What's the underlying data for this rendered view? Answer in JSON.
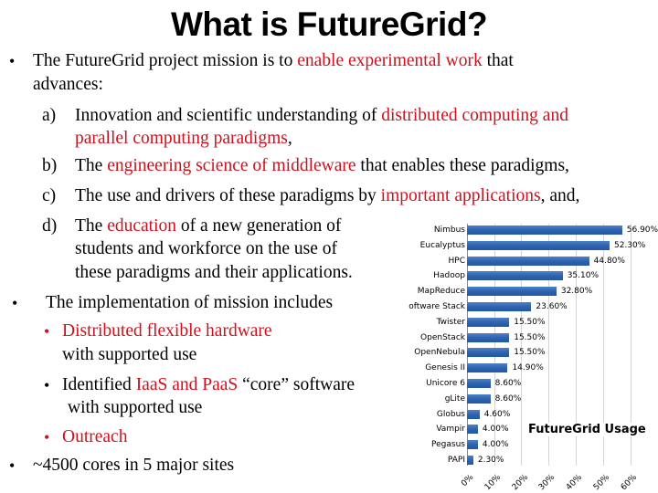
{
  "slide": {
    "title": "What is FutureGrid?",
    "bullets": {
      "b1": {
        "marker": "•",
        "pre": "The FutureGrid project mission is to ",
        "red": "enable experimental work",
        "post": " that",
        "line2": "advances:"
      },
      "a": {
        "marker": "a)",
        "pre": "Innovation and scientific understanding of ",
        "red1": "distributed computing and",
        "red2": "parallel computing paradigms",
        "post": ","
      },
      "b": {
        "marker": "b)",
        "pre": "The ",
        "red": "engineering science of middleware",
        "post": " that enables these paradigms,"
      },
      "c": {
        "marker": "c)",
        "pre": "The use and drivers of these paradigms by ",
        "red": "important applications",
        "post": ", and,"
      },
      "d": {
        "marker": "d)",
        "pre": "The ",
        "red": "education",
        "post": " of a new generation of",
        "line2": "students and workforce on the use of",
        "line3": "these paradigms and their applications."
      },
      "b2": {
        "marker": "•",
        "text": "The implementation of mission includes"
      },
      "sub1": {
        "marker": "•",
        "red": "Distributed flexible hardware",
        "line2": "with supported use"
      },
      "sub2": {
        "marker": "•",
        "pre": "Identified ",
        "red": "IaaS and PaaS",
        "post": " “core” software",
        "line2": "with supported use"
      },
      "sub3": {
        "marker": "•",
        "red": "Outreach"
      },
      "b3": {
        "marker": "•",
        "text": "~4500 cores in 5 major sites"
      }
    }
  },
  "colors": {
    "highlight_red": "#d0101c",
    "bar_blue": "#2e63b0"
  },
  "chart_data": {
    "type": "bar",
    "orientation": "horizontal",
    "title": "FutureGrid Usage",
    "categories": [
      "Nimbus",
      "Eucalyptus",
      "HPC",
      "Hadoop",
      "MapReduce",
      "Software Stack",
      "Twister",
      "OpenStack",
      "OpenNebula",
      "Genesis II",
      "Unicore 6",
      "gLite",
      "Globus",
      "Vampir",
      "Pegasus",
      "PAPI"
    ],
    "display_categories": [
      "Nimbus",
      "Eucalyptus",
      "HPC",
      "Hadoop",
      "MapReduce",
      "oftware Stack",
      "Twister",
      "OpenStack",
      "OpenNebula",
      "Genesis II",
      "Unicore 6",
      "gLite",
      "Globus",
      "Vampir",
      "Pegasus",
      "PAPI"
    ],
    "values": [
      56.9,
      52.3,
      44.8,
      35.1,
      32.8,
      23.6,
      15.5,
      15.5,
      15.5,
      14.9,
      8.6,
      8.6,
      4.6,
      4.0,
      4.0,
      2.3
    ],
    "value_labels": [
      "56.90%",
      "52.30%",
      "44.80%",
      "35.10%",
      "32.80%",
      "23.60%",
      "15.50%",
      "15.50%",
      "15.50%",
      "14.90%",
      "8.60%",
      "8.60%",
      "4.60%",
      "4.00%",
      "4.00%",
      "2.30%"
    ],
    "xlabel": "",
    "ylabel": "",
    "xlim": [
      0,
      60
    ],
    "x_ticks": [
      "0%",
      "10%",
      "20%",
      "30%",
      "40%",
      "50%",
      "60%"
    ],
    "grid": true,
    "legend": "none"
  }
}
